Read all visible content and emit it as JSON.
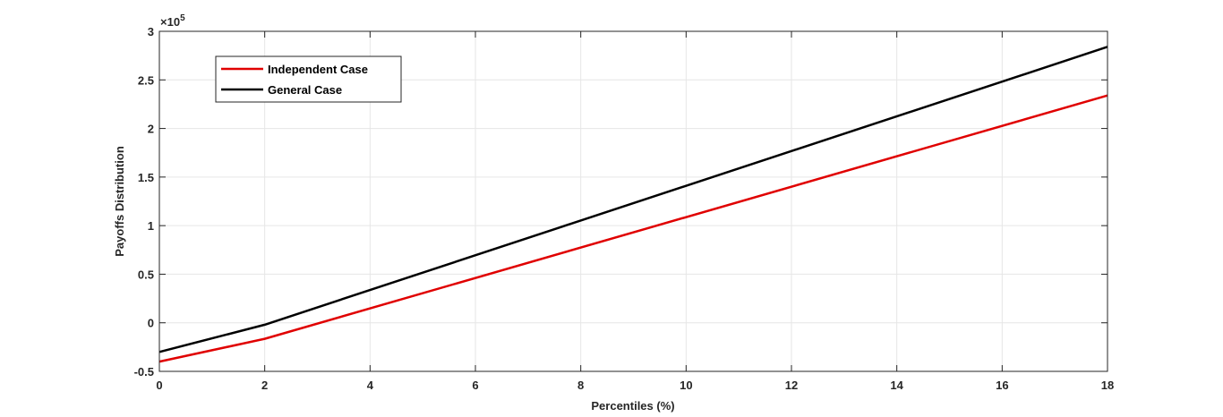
{
  "chart_data": {
    "type": "line",
    "xlabel": "Percentiles (%)",
    "ylabel": "Payoffs Distribution",
    "exponent_label": "×10",
    "exponent_power": "5",
    "xlim": [
      0,
      18
    ],
    "ylim": [
      -0.5,
      3
    ],
    "y_scale_factor": 100000,
    "x_ticks": [
      "0",
      "2",
      "4",
      "6",
      "8",
      "10",
      "12",
      "14",
      "16",
      "18"
    ],
    "y_ticks": [
      "-0.5",
      "0",
      "0.5",
      "1",
      "1.5",
      "2",
      "2.5",
      "3"
    ],
    "grid": true,
    "legend_position": "top-left",
    "series": [
      {
        "name": "Independent Case",
        "color": "#e00000",
        "x": [
          0,
          2,
          18
        ],
        "y": [
          -0.4,
          -0.165,
          2.34
        ]
      },
      {
        "name": "General Case",
        "color": "#000000",
        "x": [
          0,
          2,
          18
        ],
        "y": [
          -0.3,
          -0.02,
          2.84
        ]
      }
    ]
  }
}
